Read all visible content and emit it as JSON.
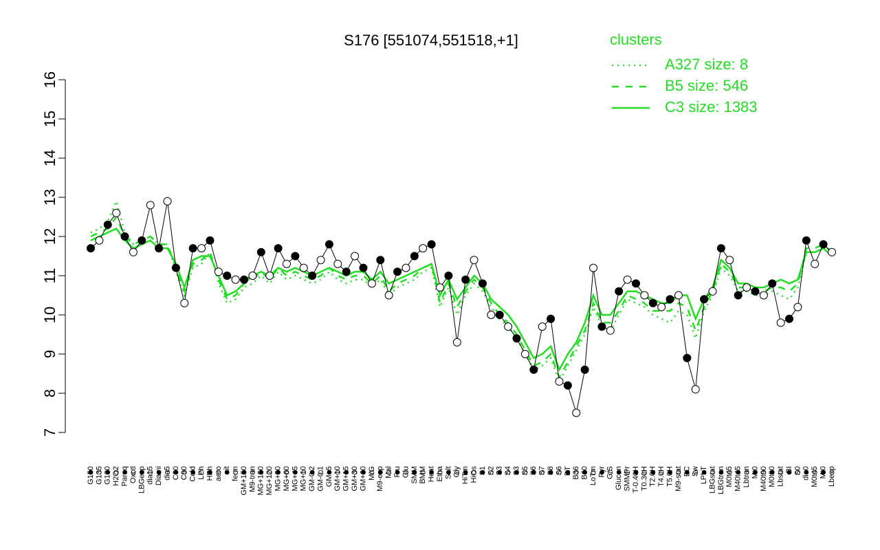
{
  "chart_data": {
    "type": "line",
    "title": "S176 [551074,551518,+1]",
    "legend_title": "clusters",
    "legend_position": "top-right",
    "ylim": [
      7,
      16
    ],
    "yticks": [
      7,
      8,
      9,
      10,
      11,
      12,
      13,
      14,
      15,
      16
    ],
    "categories": [
      "G150",
      "G135",
      "G180",
      "H2O2",
      "Paraq",
      "Oxctl",
      "LBGexp",
      "dia15",
      "Diami",
      "dia5",
      "C30",
      "C90",
      "Cold",
      "LPh",
      "HPh",
      "aero",
      "nit",
      "ferm",
      "GM+150",
      "M9-tran",
      "MG+150",
      "MG+120",
      "MG+90",
      "MG+60",
      "MG+45",
      "MG+10",
      "GM-0.2",
      "GM-0.1",
      "GM+5",
      "GM+10",
      "GM+15",
      "GM+30",
      "GM+60",
      "M/G",
      "M9-exp",
      "Mal",
      "Fru",
      "Glu",
      "SMM",
      "BMM",
      "Heat",
      "Etha",
      "Salt",
      "Gly",
      "HiTm",
      "HiOs",
      "S1",
      "S2",
      "S3",
      "S4",
      "S3",
      "S5",
      "S6",
      "S7",
      "S8",
      "S6",
      "BT",
      "B36",
      "B60",
      "LoTm",
      "Pyr",
      "G/S",
      "Glucon",
      "SMMPr",
      "T-0.40H",
      "T0.30H",
      "T2.0H",
      "T4.0H",
      "T5.0H",
      "M9-stat",
      "BC",
      "Sw",
      "LPhT",
      "LBGstat",
      "LBGtran",
      "M0t45",
      "M40t45",
      "Lbtran",
      "Mt0",
      "M40t90",
      "M0t90",
      "Lbstat",
      "BI",
      "S0",
      "dia0",
      "M0t45",
      "Mt0",
      "Lbexp"
    ],
    "points": {
      "color": "#000000",
      "values": [
        11.7,
        11.9,
        12.3,
        12.6,
        12.0,
        11.6,
        11.9,
        12.8,
        11.7,
        12.9,
        11.2,
        10.3,
        11.7,
        11.7,
        11.9,
        11.1,
        11.0,
        10.9,
        10.9,
        11.0,
        11.6,
        11.0,
        11.7,
        11.3,
        11.5,
        11.2,
        11.0,
        11.4,
        11.8,
        11.3,
        11.1,
        11.5,
        11.2,
        10.8,
        11.4,
        10.5,
        11.1,
        11.2,
        11.5,
        11.7,
        11.8,
        10.7,
        11.0,
        9.3,
        10.9,
        11.4,
        10.8,
        10.0,
        10.0,
        9.7,
        9.4,
        9.0,
        8.6,
        9.7,
        9.9,
        8.3,
        8.2,
        7.5,
        8.6,
        11.2,
        9.7,
        9.6,
        10.6,
        10.9,
        10.8,
        10.5,
        10.3,
        10.2,
        10.4,
        10.5,
        8.9,
        8.1,
        10.4,
        10.6,
        11.7,
        11.4,
        10.5,
        10.7,
        10.6,
        10.5,
        10.8,
        9.8,
        9.9,
        10.2,
        11.9,
        11.3,
        11.8,
        11.6
      ]
    },
    "series": [
      {
        "name": "A327 size: 8",
        "color": "#22dd22",
        "linestyle": "dotted",
        "values": [
          12.1,
          12.2,
          12.4,
          12.9,
          12.1,
          11.8,
          11.9,
          12.0,
          11.8,
          11.8,
          11.1,
          10.5,
          11.2,
          11.3,
          11.6,
          10.8,
          10.3,
          10.4,
          10.7,
          10.8,
          11.0,
          10.8,
          11.1,
          10.9,
          11.0,
          10.9,
          10.8,
          10.9,
          11.1,
          10.9,
          10.8,
          10.9,
          10.9,
          10.7,
          10.9,
          10.5,
          10.7,
          10.8,
          10.9,
          11.1,
          11.2,
          10.2,
          10.7,
          10.0,
          10.5,
          10.8,
          10.6,
          10.2,
          9.9,
          9.7,
          9.4,
          9.0,
          8.6,
          8.7,
          8.9,
          8.3,
          8.7,
          9.1,
          9.5,
          10.2,
          9.7,
          9.6,
          10.0,
          10.4,
          10.3,
          10.2,
          10.0,
          9.9,
          9.8,
          10.1,
          10.0,
          9.4,
          10.1,
          10.5,
          11.2,
          11.0,
          10.6,
          10.6,
          10.5,
          10.5,
          10.6,
          10.5,
          10.4,
          10.7,
          11.6,
          11.6,
          11.7,
          11.5
        ]
      },
      {
        "name": "B5 size: 546",
        "color": "#22dd22",
        "linestyle": "dashed",
        "values": [
          12.0,
          12.1,
          12.2,
          12.5,
          12.0,
          11.8,
          11.9,
          12.0,
          11.8,
          11.8,
          11.2,
          10.6,
          11.3,
          11.4,
          11.6,
          10.9,
          10.4,
          10.5,
          10.8,
          10.9,
          11.1,
          10.9,
          11.2,
          11.0,
          11.1,
          11.0,
          10.9,
          11.0,
          11.2,
          11.0,
          10.9,
          11.0,
          11.0,
          10.8,
          11.0,
          10.6,
          10.8,
          10.9,
          11.0,
          11.2,
          11.3,
          10.3,
          10.8,
          10.2,
          10.6,
          10.9,
          10.7,
          10.3,
          10.0,
          9.8,
          9.5,
          9.1,
          8.7,
          8.8,
          9.0,
          8.4,
          8.8,
          9.2,
          9.6,
          10.3,
          9.8,
          9.8,
          10.1,
          10.5,
          10.4,
          10.3,
          10.1,
          10.1,
          10.1,
          10.3,
          10.2,
          9.6,
          10.2,
          10.6,
          11.3,
          11.1,
          10.7,
          10.7,
          10.6,
          10.6,
          10.7,
          10.7,
          10.6,
          10.8,
          11.7,
          11.7,
          11.8,
          11.6
        ]
      },
      {
        "name": "C3 size: 1383",
        "color": "#22dd22",
        "linestyle": "solid",
        "values": [
          11.9,
          12.0,
          12.1,
          12.2,
          11.9,
          11.7,
          11.8,
          11.9,
          11.7,
          11.7,
          11.3,
          10.7,
          11.4,
          11.5,
          11.5,
          11.0,
          10.5,
          10.6,
          10.8,
          11.0,
          11.1,
          11.0,
          11.2,
          11.1,
          11.2,
          11.1,
          11.0,
          11.1,
          11.2,
          11.1,
          11.0,
          11.1,
          11.1,
          10.9,
          11.1,
          10.8,
          10.9,
          11.0,
          11.1,
          11.2,
          11.3,
          10.5,
          10.9,
          10.4,
          10.7,
          11.0,
          10.8,
          10.4,
          10.2,
          10.0,
          9.7,
          9.3,
          8.9,
          9.0,
          9.2,
          8.6,
          9.0,
          9.3,
          9.8,
          10.5,
          10.0,
          10.0,
          10.3,
          10.6,
          10.6,
          10.5,
          10.4,
          10.3,
          10.3,
          10.5,
          10.5,
          9.9,
          10.4,
          10.7,
          11.4,
          11.2,
          10.8,
          10.8,
          10.7,
          10.7,
          10.8,
          10.9,
          10.8,
          10.9,
          11.6,
          11.6,
          11.7,
          11.5
        ]
      }
    ]
  }
}
